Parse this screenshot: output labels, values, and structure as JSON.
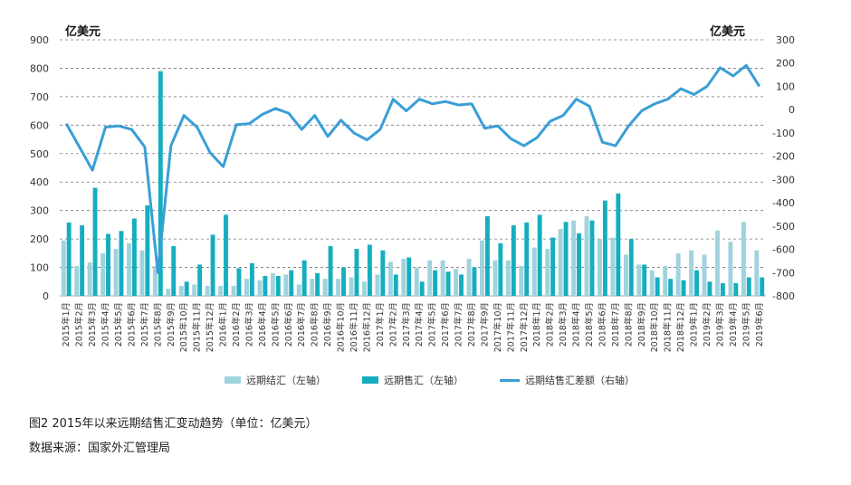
{
  "chart_data": {
    "type": "bar",
    "title": "",
    "left_unit": "亿美元",
    "right_unit": "亿美元",
    "ylim_left": [
      0,
      900
    ],
    "yticks_left": [
      0,
      100,
      200,
      300,
      400,
      500,
      600,
      700,
      800,
      900
    ],
    "ylim_right": [
      -800,
      300
    ],
    "yticks_right": [
      -800,
      -700,
      -600,
      -500,
      -400,
      -300,
      -200,
      -100,
      0,
      100,
      200,
      300
    ],
    "grid": true,
    "legend_position": "bottom",
    "categories": [
      "2015年1月",
      "2015年2月",
      "2015年3月",
      "2015年4月",
      "2015年5月",
      "2015年6月",
      "2015年7月",
      "2015年8月",
      "2015年9月",
      "2015年10月",
      "2015年11月",
      "2015年12月",
      "2016年1月",
      "2016年2月",
      "2016年3月",
      "2016年4月",
      "2016年5月",
      "2016年6月",
      "2016年7月",
      "2016年8月",
      "2016年9月",
      "2016年10月",
      "2016年11月",
      "2016年12月",
      "2017年1月",
      "2017年2月",
      "2017年3月",
      "2017年4月",
      "2017年5月",
      "2017年6月",
      "2017年7月",
      "2017年8月",
      "2017年9月",
      "2017年10月",
      "2017年11月",
      "2017年12月",
      "2018年1月",
      "2018年2月",
      "2018年3月",
      "2018年4月",
      "2018年5月",
      "2018年6月",
      "2018年7月",
      "2018年8月",
      "2018年9月",
      "2018年10月",
      "2018年11月",
      "2018年12月",
      "2019年1月",
      "2019年2月",
      "2019年3月",
      "2019年4月",
      "2019年5月",
      "2019年6月"
    ],
    "series": [
      {
        "name": "远期结汇（左轴）",
        "axis": "left",
        "kind": "bar",
        "color": "#9fd3dd",
        "values": [
          195,
          105,
          118,
          150,
          165,
          185,
          160,
          105,
          25,
          35,
          40,
          35,
          35,
          35,
          60,
          55,
          80,
          75,
          40,
          60,
          60,
          60,
          65,
          50,
          75,
          120,
          130,
          100,
          125,
          125,
          95,
          130,
          195,
          125,
          125,
          105,
          170,
          165,
          235,
          265,
          280,
          200,
          205,
          145,
          110,
          90,
          105,
          150,
          160,
          145,
          230,
          190,
          260,
          160
        ]
      },
      {
        "name": "远期售汇（左轴）",
        "axis": "left",
        "kind": "bar",
        "color": "#15aebf",
        "values": [
          258,
          248,
          380,
          218,
          228,
          272,
          318,
          790,
          175,
          50,
          110,
          215,
          285,
          97,
          115,
          70,
          70,
          90,
          125,
          80,
          175,
          100,
          165,
          180,
          160,
          75,
          135,
          50,
          90,
          85,
          75,
          100,
          280,
          185,
          248,
          258,
          285,
          205,
          260,
          220,
          265,
          335,
          360,
          200,
          110,
          65,
          60,
          55,
          90,
          50,
          45,
          45,
          65,
          65
        ]
      },
      {
        "name": "远期结售汇差额（右轴）",
        "axis": "right",
        "kind": "line",
        "color": "#3a9ed6",
        "values": [
          -60,
          -160,
          -260,
          -75,
          -70,
          -85,
          -160,
          -700,
          -155,
          -25,
          -75,
          -185,
          -245,
          -65,
          -60,
          -20,
          5,
          -15,
          -85,
          -25,
          -115,
          -45,
          -100,
          -130,
          -85,
          45,
          -5,
          45,
          25,
          35,
          20,
          25,
          -80,
          -70,
          -125,
          -155,
          -120,
          -50,
          -25,
          45,
          15,
          -140,
          -155,
          -70,
          -5,
          25,
          45,
          90,
          65,
          100,
          180,
          145,
          190,
          100
        ]
      }
    ]
  },
  "caption": {
    "figure": "图2  2015年以来远期结售汇变动趋势（单位：亿美元）",
    "source": "数据来源：国家外汇管理局"
  }
}
